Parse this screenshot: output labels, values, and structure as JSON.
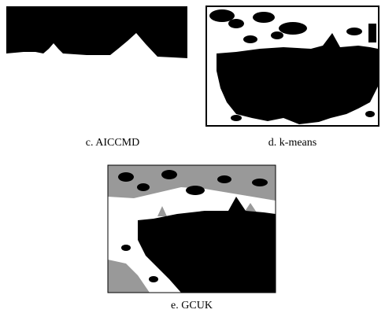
{
  "panels": [
    {
      "caption": "c. AICCMD"
    },
    {
      "caption": "d. k-means"
    },
    {
      "caption": "e. GCUK"
    }
  ]
}
